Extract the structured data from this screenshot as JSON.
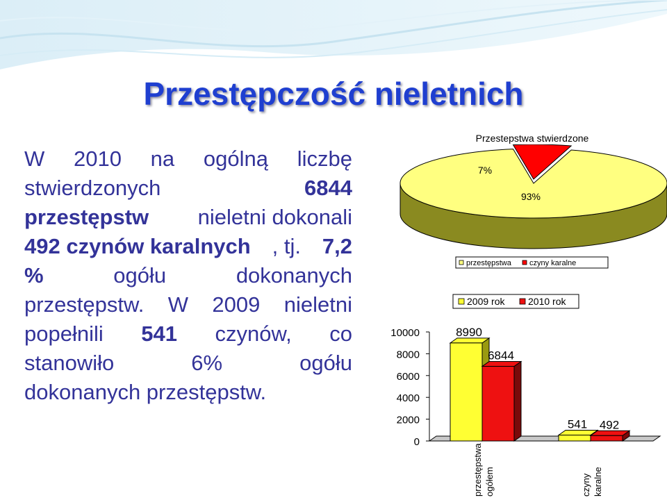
{
  "slide": {
    "title": "Przestępczość nieletnich",
    "paragraph": [
      {
        "parts": [
          {
            "t": "W",
            "b": false
          },
          {
            "t": "2010",
            "b": false
          },
          {
            "t": "na",
            "b": false
          },
          {
            "t": "ogólną",
            "b": false
          },
          {
            "t": "liczbę",
            "b": false
          }
        ]
      },
      {
        "parts": [
          {
            "t": "stwierdzonych",
            "b": false
          },
          {
            "t": "6844",
            "b": true
          }
        ]
      },
      {
        "parts": [
          {
            "t": "przestępstw",
            "b": true
          },
          {
            "t": "nieletni dokonali",
            "b": false
          }
        ]
      },
      {
        "parts": [
          {
            "t": "492 czynów karalnych",
            "b": true
          },
          {
            "t": ", tj.",
            "b": false
          },
          {
            "t": "7,2",
            "b": true
          }
        ]
      },
      {
        "parts": [
          {
            "t": "%",
            "b": true
          },
          {
            "t": "ogółu",
            "b": false
          },
          {
            "t": "dokonanych",
            "b": false
          }
        ]
      },
      {
        "parts": [
          {
            "t": "przestępstw.",
            "b": false
          },
          {
            "t": "W",
            "b": false
          },
          {
            "t": "2009",
            "b": false
          },
          {
            "t": "nieletni",
            "b": false
          }
        ]
      },
      {
        "parts": [
          {
            "t": "popełnili",
            "b": false
          },
          {
            "t": "541",
            "b": true
          },
          {
            "t": "czynów,",
            "b": false
          },
          {
            "t": "co",
            "b": false
          }
        ]
      },
      {
        "parts": [
          {
            "t": "stanowiło",
            "b": false
          },
          {
            "t": "6%",
            "b": false
          },
          {
            "t": "ogółu",
            "b": false
          }
        ]
      },
      {
        "parts": [
          {
            "t": "dokonanych przestępstw.",
            "b": false
          }
        ]
      }
    ]
  },
  "colors": {
    "title": "#1f3fd0",
    "text": "#333399",
    "pie_large": "#ffff80",
    "pie_small": "#ff0000",
    "bar_2009": "#ffff33",
    "bar_2010": "#ee1111"
  },
  "chart_data": [
    {
      "type": "pie",
      "title": "Przestepstwa stwierdzone",
      "slices": [
        {
          "name": "przestępstwa",
          "value": 93,
          "label": "93%",
          "color": "#ffff80"
        },
        {
          "name": "czyny karalne",
          "value": 7,
          "label": "7%",
          "color": "#ff0000"
        }
      ],
      "legend": [
        "przestępstwa",
        "czyny karalne"
      ],
      "legend_position": "bottom"
    },
    {
      "type": "bar",
      "categories": [
        "przestępstwa ogółem",
        "czyny karalne"
      ],
      "series": [
        {
          "name": "2009 rok",
          "values": [
            8990,
            541
          ],
          "labels": [
            "8990",
            "541"
          ],
          "color": "#ffff33"
        },
        {
          "name": "2010 rok",
          "values": [
            6844,
            492
          ],
          "labels": [
            "6844",
            "492"
          ],
          "color": "#ee1111"
        }
      ],
      "yticks": [
        0,
        2000,
        4000,
        6000,
        8000,
        10000
      ],
      "yticklabels": [
        "0",
        "2000",
        "4000",
        "6000",
        "8000",
        "10000"
      ],
      "ylim": [
        0,
        10000
      ],
      "legend_position": "top",
      "grid": false,
      "three_d": true
    }
  ]
}
